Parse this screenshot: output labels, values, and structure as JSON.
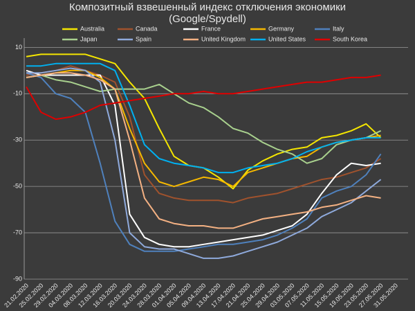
{
  "chart_data": {
    "type": "line",
    "title": "Композитный взвешенный индекс отключения экономики",
    "subtitle": "(Google/Spydell)",
    "categories": [
      "21.02.2020",
      "25.02.2020",
      "29.02.2020",
      "04.03.2020",
      "08.03.2020",
      "12.03.2020",
      "16.03.2020",
      "20.03.2020",
      "24.03.2020",
      "28.03.2020",
      "01.04.2020",
      "05.04.2020",
      "09.04.2020",
      "13.04.2020",
      "17.04.2020",
      "21.04.2020",
      "25.04.2020",
      "29.04.2020",
      "03.05.2020",
      "07.05.2020",
      "11.05.2020",
      "15.05.2020",
      "19.05.2020",
      "23.05.2020",
      "27.05.2020",
      "31.05.2020"
    ],
    "series": [
      {
        "name": "Australia",
        "color": "#f5e600",
        "values": [
          6,
          7,
          7,
          7,
          7,
          5,
          3,
          -5,
          -12,
          -25,
          -37,
          -41,
          -42,
          -46,
          -51,
          -43,
          -39,
          -36,
          -34,
          -33,
          -29,
          -28,
          -26,
          -23,
          -29,
          null
        ]
      },
      {
        "name": "Canada",
        "color": "#a0522d",
        "values": [
          -2,
          -1,
          0,
          2,
          0,
          -2,
          -5,
          -20,
          -45,
          -53,
          -55,
          -56,
          -56,
          -56,
          -57,
          -55,
          -54,
          -53,
          -51,
          -49,
          -47,
          -46,
          -44,
          -42,
          -38,
          null
        ]
      },
      {
        "name": "France",
        "color": "#ffffff",
        "values": [
          0,
          -2,
          -2,
          -2,
          -2,
          -2,
          -15,
          -62,
          -72,
          -75,
          -76,
          -76,
          -75,
          -74,
          -73,
          -72,
          -71,
          -69,
          -67,
          -62,
          -53,
          -45,
          -40,
          -41,
          -40,
          null
        ]
      },
      {
        "name": "Germany",
        "color": "#f5b800",
        "values": [
          -3,
          -2,
          -1,
          0,
          0,
          -3,
          -8,
          -25,
          -40,
          -48,
          -50,
          -48,
          -46,
          -47,
          -50,
          -44,
          -42,
          -40,
          -38,
          -37,
          -33,
          -31,
          -30,
          -29,
          -28,
          null
        ]
      },
      {
        "name": "Italy",
        "color": "#4f81bd",
        "values": [
          -1,
          -3,
          -10,
          -12,
          -18,
          -40,
          -65,
          -75,
          -78,
          -78,
          -78,
          -77,
          -76,
          -75,
          -75,
          -74,
          -73,
          -71,
          -68,
          -64,
          -55,
          -52,
          -50,
          -45,
          -36,
          null
        ]
      },
      {
        "name": "Japan",
        "color": "#a9d18e",
        "values": [
          -3,
          -2,
          -4,
          -5,
          -7,
          -9,
          -8,
          -8,
          -8,
          -6,
          -10,
          -14,
          -16,
          -20,
          -25,
          -27,
          -31,
          -34,
          -36,
          -40,
          -38,
          -32,
          -30,
          -29,
          -26,
          null
        ]
      },
      {
        "name": "Spain",
        "color": "#8faadc",
        "values": [
          -1,
          -1,
          0,
          1,
          0,
          -5,
          -30,
          -70,
          -76,
          -77,
          -77,
          -79,
          -81,
          -81,
          -80,
          -78,
          -76,
          -74,
          -71,
          -68,
          -63,
          -60,
          -57,
          -52,
          -47,
          null
        ]
      },
      {
        "name": "United Kingdom",
        "color": "#f4b183",
        "values": [
          -3,
          -2,
          -1,
          -1,
          -2,
          -4,
          -8,
          -30,
          -55,
          -64,
          -66,
          -67,
          -67,
          -68,
          -68,
          -66,
          -64,
          -63,
          -62,
          -61,
          -59,
          -58,
          -56,
          -54,
          -55,
          null
        ]
      },
      {
        "name": "United States",
        "color": "#00b0f0",
        "values": [
          2,
          2,
          3,
          3,
          3,
          3,
          0,
          -15,
          -32,
          -38,
          -40,
          -41,
          -42,
          -44,
          -44,
          -42,
          -41,
          -40,
          -38,
          -35,
          -33,
          -31,
          -30,
          -29,
          -29,
          null
        ]
      },
      {
        "name": "South Korea",
        "color": "#e00000",
        "values": [
          -7,
          -18,
          -21,
          -20,
          -18,
          -15,
          -14,
          -13,
          -12,
          -11,
          -10,
          -10,
          -9,
          -10,
          -10,
          -9,
          -8,
          -7,
          -6,
          -5,
          -5,
          -4,
          -3,
          -3,
          -2,
          null
        ]
      }
    ],
    "ylim": [
      -90,
      14
    ],
    "yticks": [
      -90,
      -70,
      -50,
      -30,
      -10,
      10
    ],
    "grid": true
  }
}
